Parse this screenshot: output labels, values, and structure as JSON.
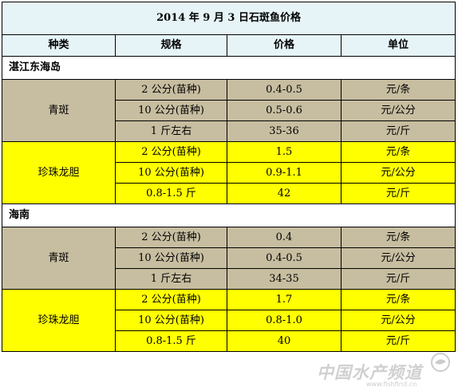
{
  "title": "2014 年 9 月 3 日石斑鱼价格",
  "headers": [
    "种类",
    "规格",
    "价格",
    "单位"
  ],
  "regions": [
    {
      "name": "湛江东海岛",
      "groups": [
        {
          "name": "青斑",
          "color": "#c7bda0",
          "rows": [
            {
              "spec": "2 公分(苗种)",
              "price": "0.4-0.5",
              "unit": "元/条"
            },
            {
              "spec": "10 公分(苗种)",
              "price": "0.5-0.6",
              "unit": "元/公分"
            },
            {
              "spec": "1 斤左右",
              "price": "35-36",
              "unit": "元/斤"
            }
          ]
        },
        {
          "name": "珍珠龙胆",
          "color": "#ffff00",
          "rows": [
            {
              "spec": "2 公分(苗种)",
              "price": "1.5",
              "unit": "元/条"
            },
            {
              "spec": "10 公分(苗种)",
              "price": "0.9-1.1",
              "unit": "元/公分"
            },
            {
              "spec": "0.8-1.5 斤",
              "price": "42",
              "unit": "元/斤"
            }
          ]
        }
      ]
    },
    {
      "name": "海南",
      "groups": [
        {
          "name": "青斑",
          "color": "#c7bda0",
          "rows": [
            {
              "spec": "2 公分(苗种)",
              "price": "0.4",
              "unit": "元/条"
            },
            {
              "spec": "10 公分(苗种)",
              "price": "0.4-0.5",
              "unit": "元/公分"
            },
            {
              "spec": "1 斤左右",
              "price": "34-35",
              "unit": "元/斤"
            }
          ]
        },
        {
          "name": "珍珠龙胆",
          "color": "#ffff00",
          "rows": [
            {
              "spec": "2 公分(苗种)",
              "price": "1.7",
              "unit": "元/条"
            },
            {
              "spec": "10 公分(苗种)",
              "price": "0.8-1.0",
              "unit": "元/公分"
            },
            {
              "spec": "0.8-1.5 斤",
              "price": "40",
              "unit": "元/斤"
            }
          ]
        }
      ]
    }
  ],
  "watermark": {
    "text": "中国水产频道",
    "url": "www.fishfirst.cn",
    "logo_icon": "fish-logo-icon"
  }
}
